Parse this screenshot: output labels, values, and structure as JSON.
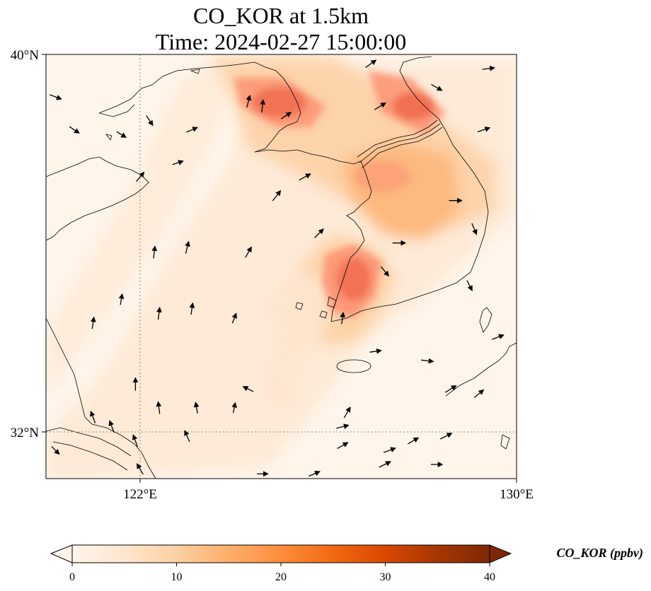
{
  "title": {
    "line1": "CO_KOR at 1.5km",
    "line2": "Time: 2024-02-27 15:00:00"
  },
  "axes": {
    "lat_labels": [
      "40°N",
      "32°N"
    ],
    "lon_labels": [
      "122°E",
      "130°E"
    ],
    "lat_values": [
      40,
      32
    ],
    "lon_values": [
      122,
      130
    ],
    "lon_range": [
      120,
      130
    ],
    "lat_range": [
      31,
      40
    ],
    "gridlines": "dotted"
  },
  "colorbar": {
    "label": "CO_KOR (ppbv)",
    "ticks": [
      "0",
      "10",
      "20",
      "30",
      "40"
    ],
    "tick_values": [
      0,
      10,
      20,
      30,
      40
    ],
    "range": [
      0,
      40
    ],
    "extend": "both",
    "colormap": [
      "#fff5eb",
      "#fee6ce",
      "#fdd0a2",
      "#fdae6b",
      "#fd8d3c",
      "#f16913",
      "#d94801",
      "#a63603",
      "#7f2704"
    ]
  },
  "colors": {
    "background": "#fff5eb",
    "coastline": "#000000",
    "gridline": "#888888",
    "vector": "#000000"
  },
  "icons": {
    "wind_vector": "arrow-icon"
  },
  "chart_data": {
    "type": "heatmap",
    "variable": "CO_KOR",
    "units": "ppbv",
    "level": "1.5km",
    "time": "2024-02-27 15:00:00",
    "plumes": [
      {
        "lon": 124.5,
        "lat": 39.1,
        "value": 28
      },
      {
        "lon": 128.0,
        "lat": 39.0,
        "value": 26
      },
      {
        "lon": 127.3,
        "lat": 37.5,
        "value": 22
      },
      {
        "lon": 126.5,
        "lat": 35.1,
        "value": 25
      },
      {
        "lon": 126.2,
        "lat": 34.2,
        "value": 18
      },
      {
        "lon": 124.0,
        "lat": 37.8,
        "value": 12
      },
      {
        "lon": 121.0,
        "lat": 33.0,
        "value": 6
      }
    ],
    "wind_vectors": [
      {
        "lon": 120.2,
        "lat": 39.1,
        "dx": 0.8,
        "dy": -0.3
      },
      {
        "lon": 120.6,
        "lat": 38.4,
        "dx": 0.6,
        "dy": -0.4
      },
      {
        "lon": 121.6,
        "lat": 38.3,
        "dx": 0.5,
        "dy": -0.3
      },
      {
        "lon": 122.2,
        "lat": 38.6,
        "dx": 0.4,
        "dy": -0.6
      },
      {
        "lon": 123.1,
        "lat": 38.4,
        "dx": 0.7,
        "dy": 0.3
      },
      {
        "lon": 124.3,
        "lat": 39.0,
        "dx": 0.2,
        "dy": 0.8
      },
      {
        "lon": 124.6,
        "lat": 38.9,
        "dx": 0.1,
        "dy": 0.9
      },
      {
        "lon": 125.1,
        "lat": 38.7,
        "dx": 0.6,
        "dy": 0.4
      },
      {
        "lon": 126.9,
        "lat": 39.8,
        "dx": 1.0,
        "dy": 0.7
      },
      {
        "lon": 127.1,
        "lat": 38.9,
        "dx": 0.8,
        "dy": 0.5
      },
      {
        "lon": 128.3,
        "lat": 39.3,
        "dx": 0.7,
        "dy": -0.4
      },
      {
        "lon": 129.3,
        "lat": 38.4,
        "dx": 0.9,
        "dy": 0.3
      },
      {
        "lon": 129.4,
        "lat": 39.7,
        "dx": 0.8,
        "dy": 0.1
      },
      {
        "lon": 122.0,
        "lat": 37.4,
        "dx": 0.5,
        "dy": 0.6
      },
      {
        "lon": 122.8,
        "lat": 37.7,
        "dx": 0.6,
        "dy": 0.2
      },
      {
        "lon": 124.9,
        "lat": 37.0,
        "dx": 0.7,
        "dy": 0.9
      },
      {
        "lon": 125.5,
        "lat": 37.4,
        "dx": 0.9,
        "dy": 0.5
      },
      {
        "lon": 128.7,
        "lat": 36.9,
        "dx": 0.9,
        "dy": 0.0
      },
      {
        "lon": 125.8,
        "lat": 36.2,
        "dx": 0.6,
        "dy": 0.6
      },
      {
        "lon": 127.5,
        "lat": 36.0,
        "dx": 0.9,
        "dy": 0.0
      },
      {
        "lon": 129.1,
        "lat": 36.3,
        "dx": 0.3,
        "dy": -0.7
      },
      {
        "lon": 122.3,
        "lat": 35.8,
        "dx": 0.1,
        "dy": 0.8
      },
      {
        "lon": 123.0,
        "lat": 35.9,
        "dx": 0.2,
        "dy": 0.8
      },
      {
        "lon": 124.3,
        "lat": 35.8,
        "dx": 0.4,
        "dy": 0.7
      },
      {
        "lon": 127.2,
        "lat": 35.4,
        "dx": 0.5,
        "dy": -0.6
      },
      {
        "lon": 121.6,
        "lat": 34.8,
        "dx": 0.1,
        "dy": 0.6
      },
      {
        "lon": 122.4,
        "lat": 34.5,
        "dx": 0.1,
        "dy": 0.8
      },
      {
        "lon": 123.1,
        "lat": 34.6,
        "dx": 0.1,
        "dy": 0.7
      },
      {
        "lon": 124.0,
        "lat": 34.4,
        "dx": 0.2,
        "dy": 0.5
      },
      {
        "lon": 126.3,
        "lat": 34.4,
        "dx": 0.1,
        "dy": 0.7
      },
      {
        "lon": 129.0,
        "lat": 35.1,
        "dx": 0.3,
        "dy": -0.6
      },
      {
        "lon": 129.6,
        "lat": 34.0,
        "dx": 0.8,
        "dy": 0.3
      },
      {
        "lon": 121.0,
        "lat": 34.3,
        "dx": 0.1,
        "dy": 0.7
      },
      {
        "lon": 121.9,
        "lat": 33.0,
        "dx": 0.0,
        "dy": 1.0
      },
      {
        "lon": 122.4,
        "lat": 32.5,
        "dx": -0.1,
        "dy": 0.8
      },
      {
        "lon": 123.2,
        "lat": 32.5,
        "dx": -0.1,
        "dy": 0.6
      },
      {
        "lon": 124.0,
        "lat": 32.5,
        "dx": 0.1,
        "dy": 0.5
      },
      {
        "lon": 126.4,
        "lat": 32.4,
        "dx": 0.4,
        "dy": 0.7
      },
      {
        "lon": 127.0,
        "lat": 33.7,
        "dx": 0.7,
        "dy": 0.1
      },
      {
        "lon": 128.1,
        "lat": 33.5,
        "dx": 0.8,
        "dy": -0.1
      },
      {
        "lon": 128.6,
        "lat": 32.9,
        "dx": 0.8,
        "dy": 0.5
      },
      {
        "lon": 129.2,
        "lat": 32.8,
        "dx": 0.6,
        "dy": 0.5
      },
      {
        "lon": 121.0,
        "lat": 32.3,
        "dx": -0.3,
        "dy": 0.8
      },
      {
        "lon": 121.4,
        "lat": 32.1,
        "dx": -0.3,
        "dy": 0.8
      },
      {
        "lon": 121.9,
        "lat": 31.8,
        "dx": -0.3,
        "dy": 0.8
      },
      {
        "lon": 123.0,
        "lat": 31.9,
        "dx": -0.3,
        "dy": 0.7
      },
      {
        "lon": 126.3,
        "lat": 31.7,
        "dx": 0.7,
        "dy": 0.4
      },
      {
        "lon": 127.3,
        "lat": 31.6,
        "dx": 0.8,
        "dy": 0.3
      },
      {
        "lon": 127.8,
        "lat": 31.8,
        "dx": 0.7,
        "dy": 0.4
      },
      {
        "lon": 128.5,
        "lat": 31.9,
        "dx": 0.8,
        "dy": 0.4
      },
      {
        "lon": 126.3,
        "lat": 32.1,
        "dx": 0.8,
        "dy": 0.2
      },
      {
        "lon": 124.3,
        "lat": 32.9,
        "dx": -0.6,
        "dy": 0.3
      },
      {
        "lon": 125.7,
        "lat": 31.1,
        "dx": 0.7,
        "dy": 0.3
      },
      {
        "lon": 127.2,
        "lat": 31.3,
        "dx": 0.8,
        "dy": 0.4
      },
      {
        "lon": 128.3,
        "lat": 31.3,
        "dx": 0.7,
        "dy": 0.0
      },
      {
        "lon": 122.0,
        "lat": 31.2,
        "dx": -0.4,
        "dy": 0.7
      },
      {
        "lon": 120.2,
        "lat": 31.6,
        "dx": 0.4,
        "dy": -0.4
      },
      {
        "lon": 124.6,
        "lat": 31.1,
        "dx": 0.6,
        "dy": 0.0
      }
    ]
  }
}
